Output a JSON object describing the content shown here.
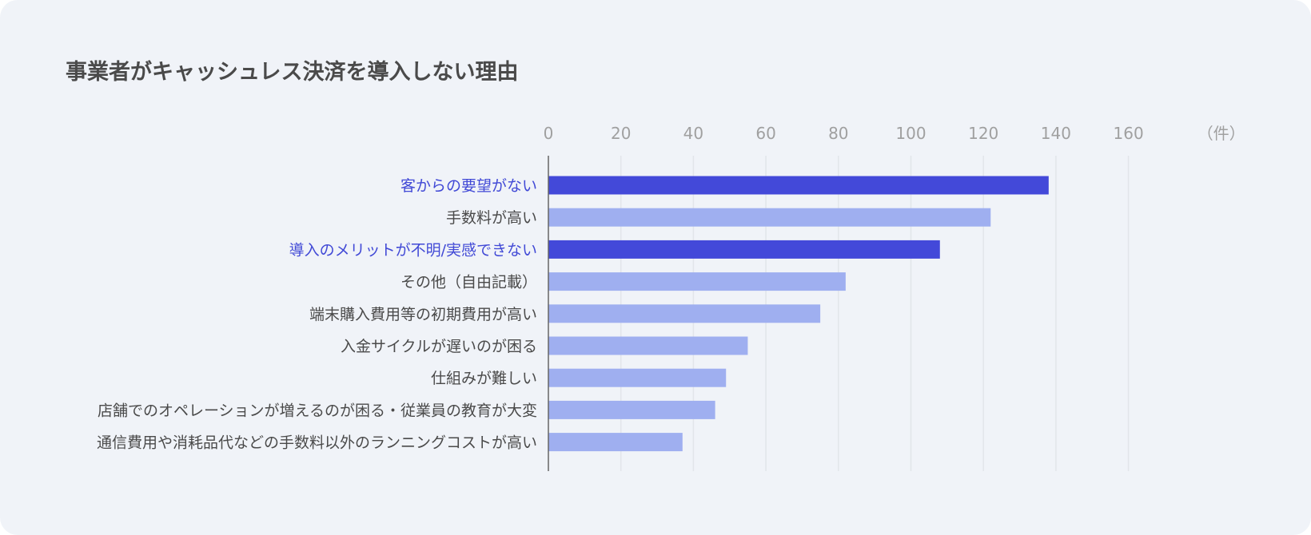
{
  "title": "事業者がキャッシュレス決済を導入しない理由",
  "colors": {
    "card_background": "#f0f3f8",
    "highlight_bar": "#4349d9",
    "normal_bar": "#9faff0",
    "highlight_label": "#4149d6",
    "normal_label": "#4a4a4a",
    "grid": "#e2e5ea",
    "axis": "#666666",
    "tick_label": "#a0a0a0"
  },
  "chart_data": {
    "type": "bar",
    "orientation": "horizontal",
    "unit_label": "（件）",
    "xlim": [
      0,
      160
    ],
    "xticks": [
      0,
      20,
      40,
      60,
      80,
      100,
      120,
      140,
      160
    ],
    "grid": true,
    "categories": [
      "客からの要望がない",
      "手数料が高い",
      "導入のメリットが不明/実感できない",
      "その他（自由記載）",
      "端末購入費用等の初期費用が高い",
      "入金サイクルが遅いのが困る",
      "仕組みが難しい",
      "店舗でのオペレーションが増えるのが困る・従業員の教育が大変",
      "通信費用や消耗品代などの手数料以外のランニングコストが高い"
    ],
    "values": [
      138,
      122,
      108,
      82,
      75,
      55,
      49,
      46,
      37
    ],
    "highlighted": [
      true,
      false,
      true,
      false,
      false,
      false,
      false,
      false,
      false
    ]
  }
}
